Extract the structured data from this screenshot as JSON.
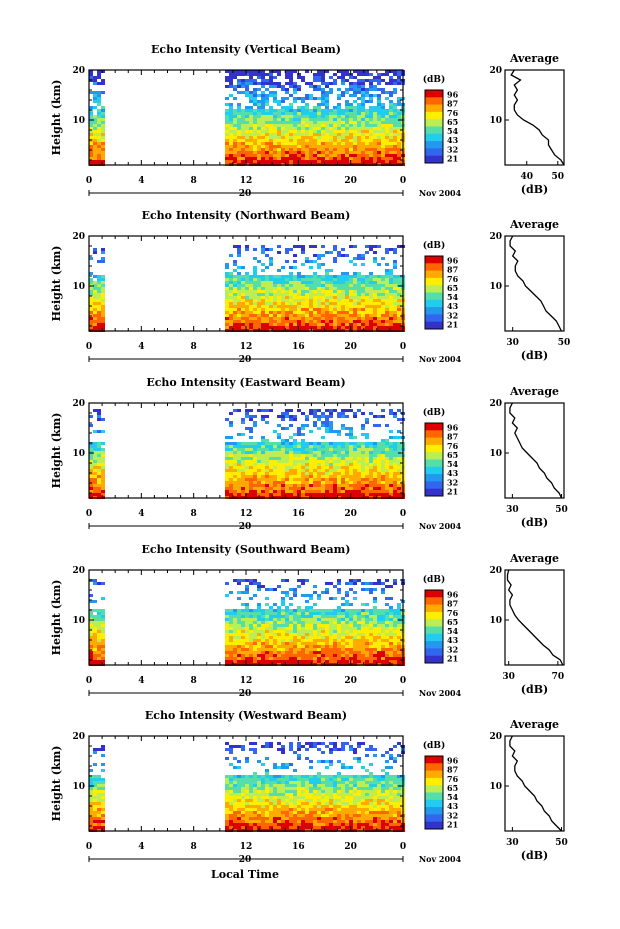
{
  "figure": {
    "shared_xlabel": "Local Time",
    "date_label": "Nov 2004",
    "colorbar_unit": "(dB)",
    "colorbar_ticks": [
      "96",
      "87",
      "76",
      "65",
      "54",
      "43",
      "32",
      "21"
    ],
    "colorbar_colors": [
      "#dd0000",
      "#ff6600",
      "#ffaa00",
      "#ffee00",
      "#bbee55",
      "#55ddaa",
      "#22ccee",
      "#2299ee",
      "#3366ee",
      "#3333cc"
    ]
  },
  "chart_data": [
    {
      "type": "heatmap",
      "title": "Echo Intensity (Vertical Beam)",
      "ylabel": "Height (km)",
      "xticks": [
        "0",
        "4",
        "8",
        "12",
        "16",
        "20",
        "0"
      ],
      "yticks": [
        "10",
        "20"
      ],
      "day_label": "20",
      "xlim": [
        0,
        24
      ],
      "ylim": [
        1,
        20
      ],
      "gap_hours": [
        1.0,
        10.2
      ],
      "top_echo_km": 20,
      "profile": {
        "title": "Average",
        "xlabel": "(dB)",
        "xticks": [
          "40",
          "50"
        ],
        "xlim": [
          33,
          52
        ],
        "yticks": [
          "10",
          "20"
        ],
        "ylim": [
          1,
          20
        ],
        "height_km": [
          1,
          2,
          3,
          4,
          5,
          6,
          7,
          8,
          9,
          10,
          11,
          12,
          13,
          14,
          15,
          16,
          17,
          18,
          19,
          20
        ],
        "values_db": [
          52,
          51,
          49,
          48,
          47,
          47,
          45,
          44,
          42,
          39,
          37,
          36,
          36,
          37,
          36,
          37,
          36,
          38,
          35,
          36
        ]
      }
    },
    {
      "type": "heatmap",
      "title": "Echo Intensity (Northward Beam)",
      "ylabel": "Height (km)",
      "xticks": [
        "0",
        "4",
        "8",
        "12",
        "16",
        "20",
        "0"
      ],
      "yticks": [
        "10",
        "20"
      ],
      "day_label": "20",
      "xlim": [
        0,
        24
      ],
      "ylim": [
        1,
        20
      ],
      "gap_hours": [
        1.0,
        10.2
      ],
      "top_echo_km": 18.5,
      "profile": {
        "title": "Average",
        "xlabel": "(dB)",
        "xticks": [
          "30",
          "50"
        ],
        "xlim": [
          27,
          50
        ],
        "yticks": [
          "10",
          "20"
        ],
        "ylim": [
          1,
          20
        ],
        "height_km": [
          1,
          2,
          3,
          4,
          5,
          6,
          7,
          8,
          9,
          10,
          11,
          12,
          13,
          14,
          15,
          16,
          17,
          18,
          19,
          20
        ],
        "values_db": [
          49,
          48,
          47,
          45,
          43,
          42,
          41,
          39,
          37,
          35,
          34,
          32,
          31,
          31,
          32,
          30,
          31,
          29,
          29,
          30
        ]
      }
    },
    {
      "type": "heatmap",
      "title": "Echo Intensity (Eastward Beam)",
      "ylabel": "Height (km)",
      "xticks": [
        "0",
        "4",
        "8",
        "12",
        "16",
        "20",
        "0"
      ],
      "yticks": [
        "10",
        "20"
      ],
      "day_label": "20",
      "xlim": [
        0,
        24
      ],
      "ylim": [
        1,
        20
      ],
      "gap_hours": [
        1.0,
        10.2
      ],
      "top_echo_km": 19,
      "profile": {
        "title": "Average",
        "xlabel": "(dB)",
        "xticks": [
          "30",
          "50"
        ],
        "xlim": [
          27,
          51
        ],
        "yticks": [
          "10",
          "20"
        ],
        "ylim": [
          1,
          20
        ],
        "height_km": [
          1,
          2,
          3,
          4,
          5,
          6,
          7,
          8,
          9,
          10,
          11,
          12,
          13,
          14,
          15,
          16,
          17,
          18,
          19,
          20
        ],
        "values_db": [
          50,
          49,
          47,
          46,
          44,
          43,
          41,
          40,
          38,
          36,
          34,
          33,
          32,
          31,
          32,
          30,
          31,
          29,
          29,
          30
        ]
      }
    },
    {
      "type": "heatmap",
      "title": "Echo Intensity (Southward Beam)",
      "ylabel": "Height (km)",
      "xticks": [
        "0",
        "4",
        "8",
        "12",
        "16",
        "20",
        "0"
      ],
      "yticks": [
        "10",
        "20"
      ],
      "day_label": "20",
      "xlim": [
        0,
        24
      ],
      "ylim": [
        1,
        20
      ],
      "gap_hours": [
        1.0,
        10.2
      ],
      "top_echo_km": 18.5,
      "profile": {
        "title": "Average",
        "xlabel": "(dB)",
        "xticks": [
          "30",
          "70"
        ],
        "xlim": [
          27,
          75
        ],
        "yticks": [
          "10",
          "20"
        ],
        "ylim": [
          1,
          20
        ],
        "height_km": [
          1,
          2,
          3,
          4,
          5,
          6,
          7,
          8,
          9,
          10,
          11,
          12,
          13,
          14,
          15,
          16,
          17,
          18,
          19,
          20
        ],
        "values_db": [
          74,
          72,
          66,
          63,
          58,
          54,
          50,
          46,
          42,
          38,
          35,
          33,
          31,
          31,
          33,
          30,
          32,
          29,
          29,
          30
        ]
      }
    },
    {
      "type": "heatmap",
      "title": "Echo Intensity (Westward Beam)",
      "ylabel": "Height (km)",
      "xticks": [
        "0",
        "4",
        "8",
        "12",
        "16",
        "20",
        "0"
      ],
      "yticks": [
        "10",
        "20"
      ],
      "day_label": "20",
      "xlim": [
        0,
        24
      ],
      "ylim": [
        1,
        20
      ],
      "gap_hours": [
        1.0,
        10.2
      ],
      "top_echo_km": 19,
      "profile": {
        "title": "Average",
        "xlabel": "(dB)",
        "xticks": [
          "30",
          "50"
        ],
        "xlim": [
          27,
          51
        ],
        "yticks": [
          "10",
          "20"
        ],
        "ylim": [
          1,
          20
        ],
        "height_km": [
          1,
          2,
          3,
          4,
          5,
          6,
          7,
          8,
          9,
          10,
          11,
          12,
          13,
          14,
          15,
          16,
          17,
          18,
          19,
          20
        ],
        "values_db": [
          50,
          48,
          46,
          45,
          43,
          42,
          40,
          39,
          37,
          35,
          34,
          32,
          31,
          31,
          32,
          30,
          31,
          29,
          29,
          30
        ]
      }
    }
  ]
}
